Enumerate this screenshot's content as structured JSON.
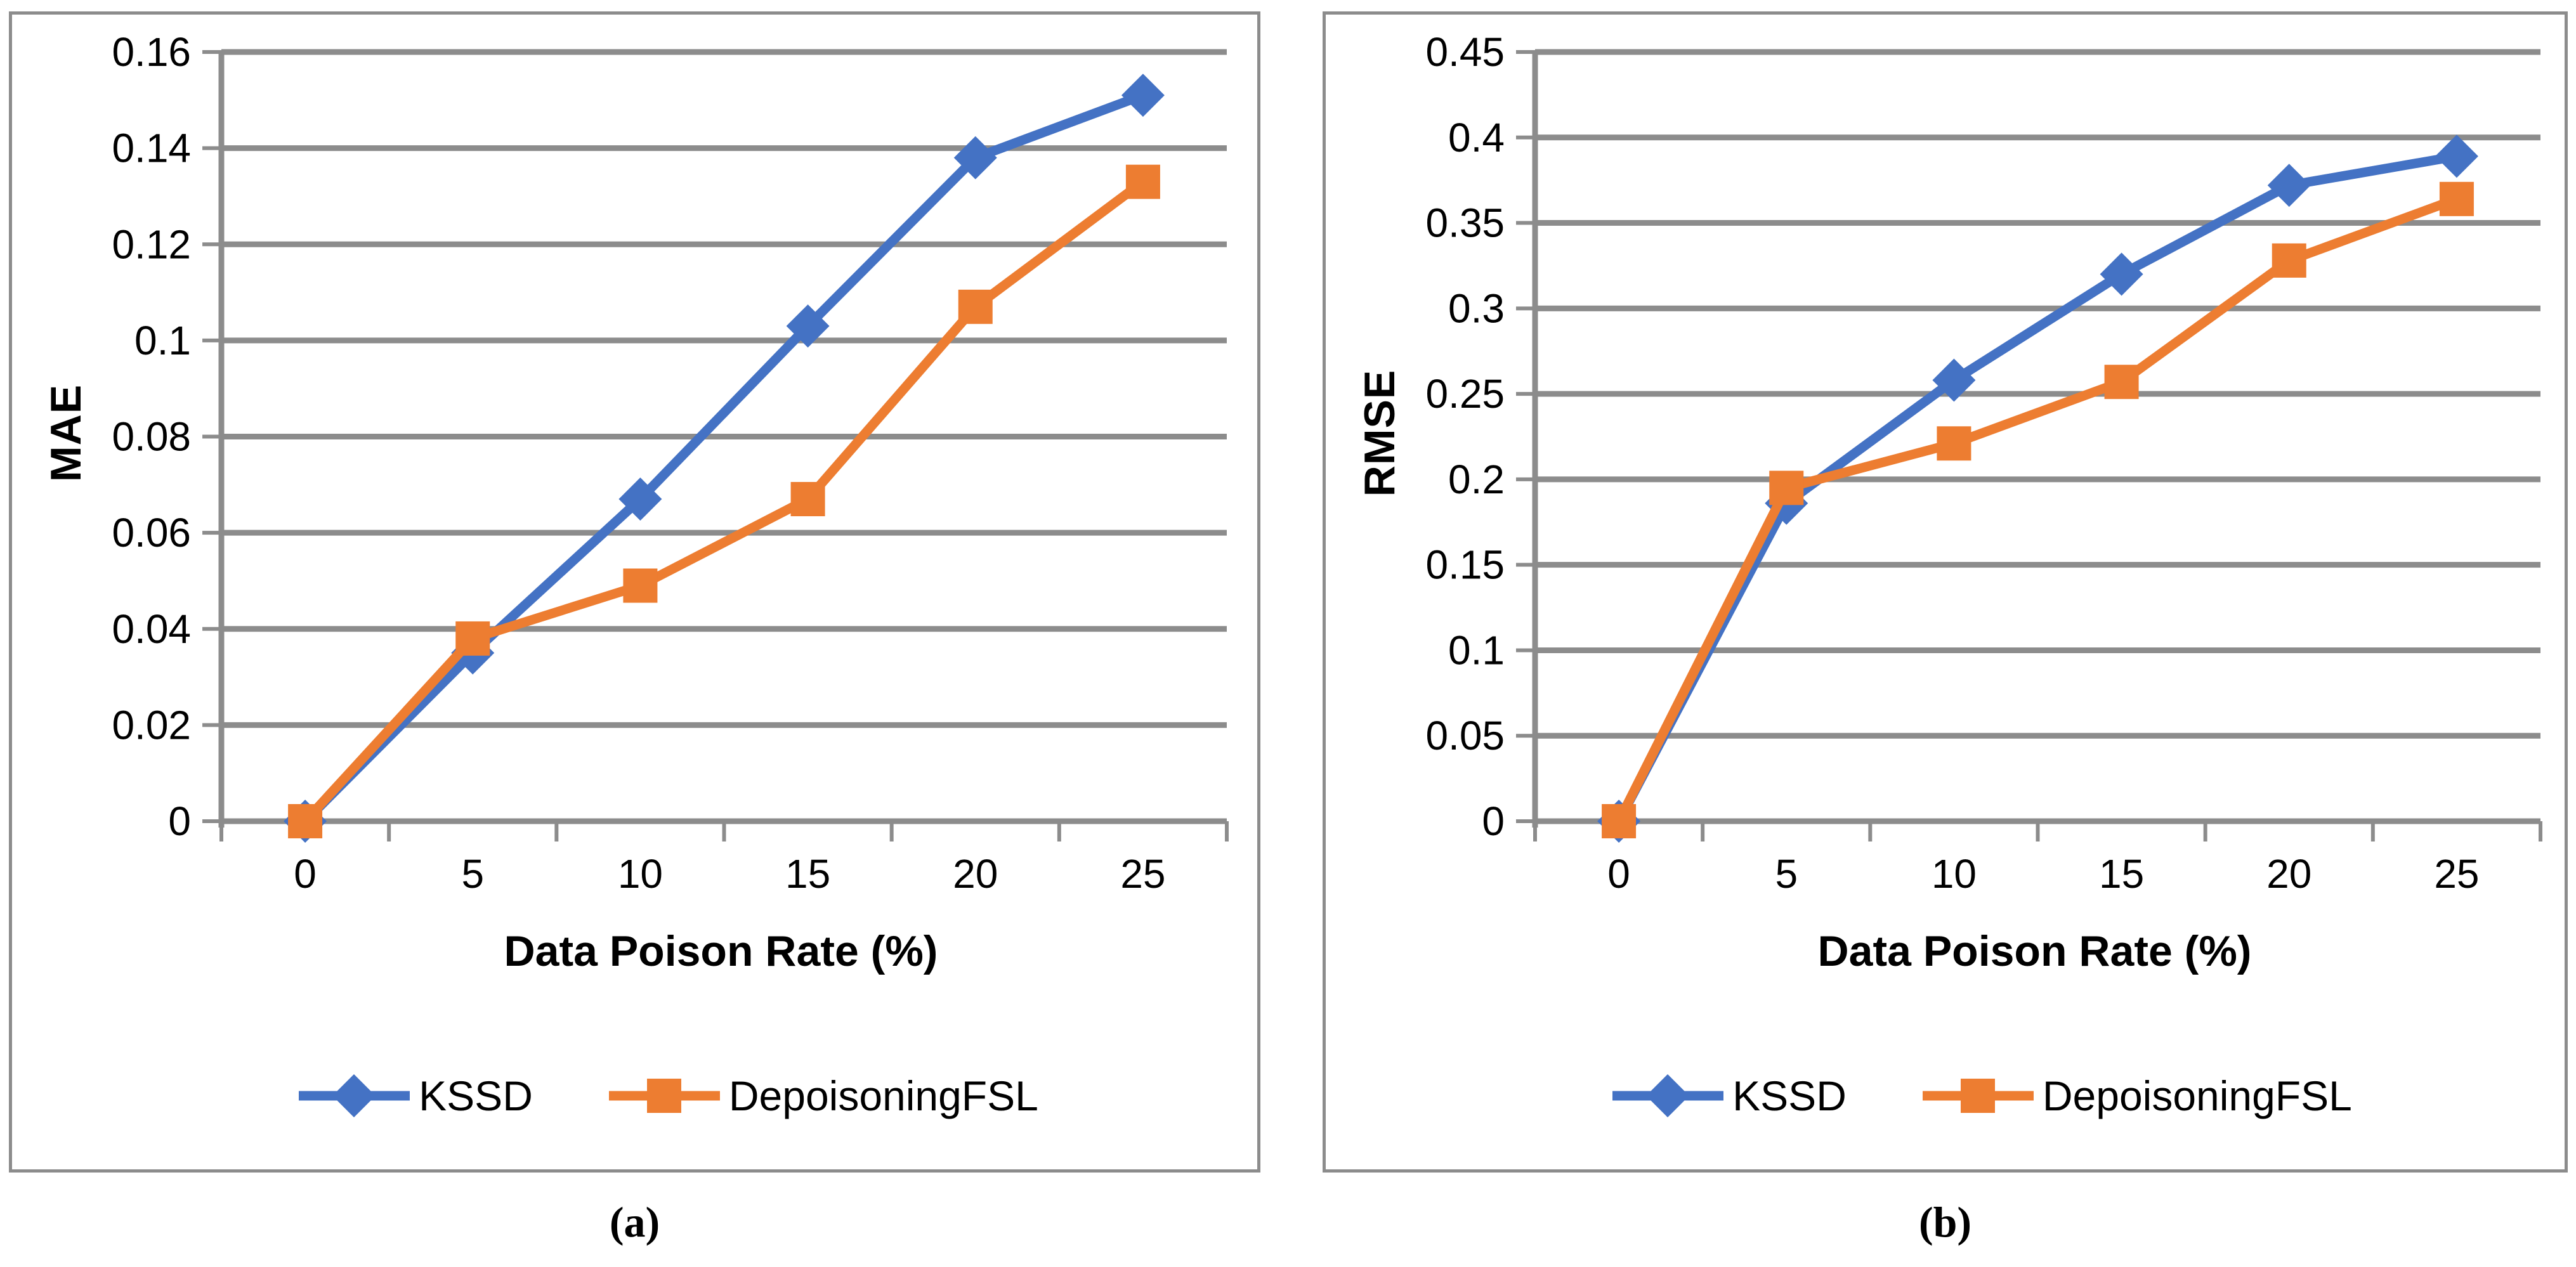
{
  "figure": {
    "captions": [
      "(a)",
      "(b)"
    ]
  },
  "colors": {
    "series_blue": "#4472C4",
    "series_orange": "#ED7D31",
    "gridline": "#8C8C8C",
    "axis": "#8C8C8C",
    "panel_border": "#8C8C8C",
    "text": "#000000",
    "background": "#FFFFFF"
  },
  "chart_data": [
    {
      "type": "line",
      "panel": "a",
      "title": "",
      "xlabel": "Data Poison Rate (%)",
      "ylabel": "MAE",
      "x": [
        "0",
        "5",
        "10",
        "15",
        "20",
        "25"
      ],
      "x_values": [
        0,
        5,
        10,
        15,
        20,
        25
      ],
      "ylim": [
        0,
        0.16
      ],
      "ytick_step": 0.02,
      "yticks": [
        "0",
        "0.02",
        "0.04",
        "0.06",
        "0.08",
        "0.1",
        "0.12",
        "0.14",
        "0.16"
      ],
      "grid": true,
      "legend_position": "bottom",
      "series": [
        {
          "name": "KSSD",
          "marker": "diamond",
          "color": "#4472C4",
          "values": [
            0,
            0.035,
            0.067,
            0.103,
            0.138,
            0.151
          ]
        },
        {
          "name": "DepoisoningFSL",
          "marker": "square",
          "color": "#ED7D31",
          "values": [
            0,
            0.038,
            0.049,
            0.067,
            0.107,
            0.133
          ]
        }
      ]
    },
    {
      "type": "line",
      "panel": "b",
      "title": "",
      "xlabel": "Data Poison Rate (%)",
      "ylabel": "RMSE",
      "x": [
        "0",
        "5",
        "10",
        "15",
        "20",
        "25"
      ],
      "x_values": [
        0,
        5,
        10,
        15,
        20,
        25
      ],
      "ylim": [
        0,
        0.45
      ],
      "ytick_step": 0.05,
      "yticks": [
        "0",
        "0.05",
        "0.1",
        "0.15",
        "0.2",
        "0.25",
        "0.3",
        "0.35",
        "0.4",
        "0.45"
      ],
      "grid": true,
      "legend_position": "bottom",
      "series": [
        {
          "name": "KSSD",
          "marker": "diamond",
          "color": "#4472C4",
          "values": [
            0,
            0.186,
            0.258,
            0.32,
            0.372,
            0.389
          ]
        },
        {
          "name": "DepoisoningFSL",
          "marker": "square",
          "color": "#ED7D31",
          "values": [
            0,
            0.195,
            0.221,
            0.257,
            0.328,
            0.364
          ]
        }
      ]
    }
  ]
}
